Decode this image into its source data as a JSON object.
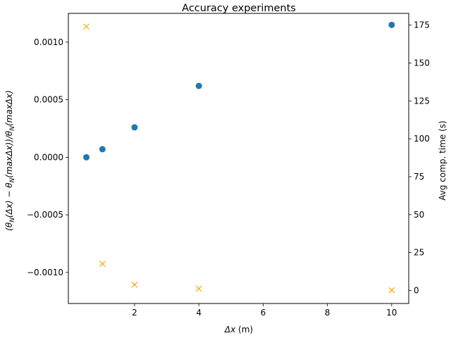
{
  "chart_data": {
    "type": "scatter",
    "title": "Accuracy experiments",
    "xlabel": "Δx (m)",
    "ylabel_left": "(θ_N(Δx) − θ_N(maxΔx))/θ_N(maxΔx)",
    "ylabel_right": "Avg comp. time (s)",
    "xlim": [
      -0.06,
      10.53
    ],
    "ylim_left": [
      -0.00127,
      0.00125
    ],
    "ylim_right": [
      -8.6,
      182.7
    ],
    "x_ticks": [
      2,
      4,
      6,
      8,
      10
    ],
    "x_tick_labels": [
      "2",
      "4",
      "6",
      "8",
      "10"
    ],
    "y_left_ticks": [
      -0.001,
      -0.0005,
      0.0,
      0.0005,
      0.001
    ],
    "y_left_tick_labels": [
      "−0.0010",
      "−0.0005",
      "0.0000",
      "0.0005",
      "0.0010"
    ],
    "y_right_ticks": [
      0,
      25,
      50,
      75,
      100,
      125,
      150,
      175
    ],
    "y_right_tick_labels": [
      "0",
      "25",
      "50",
      "75",
      "100",
      "125",
      "150",
      "175"
    ],
    "grid": false,
    "series": [
      {
        "axis": "left",
        "marker": "circle",
        "color": "#1f77b4",
        "x": [
          0.5,
          1,
          2,
          4,
          10
        ],
        "y": [
          0.0,
          7e-05,
          0.00026,
          0.00062,
          0.00115
        ]
      },
      {
        "axis": "right",
        "marker": "x",
        "color": "#ffa500",
        "x": [
          0.5,
          1,
          2,
          4,
          10
        ],
        "y": [
          174,
          17.5,
          3.8,
          1.2,
          0.2
        ]
      }
    ]
  }
}
